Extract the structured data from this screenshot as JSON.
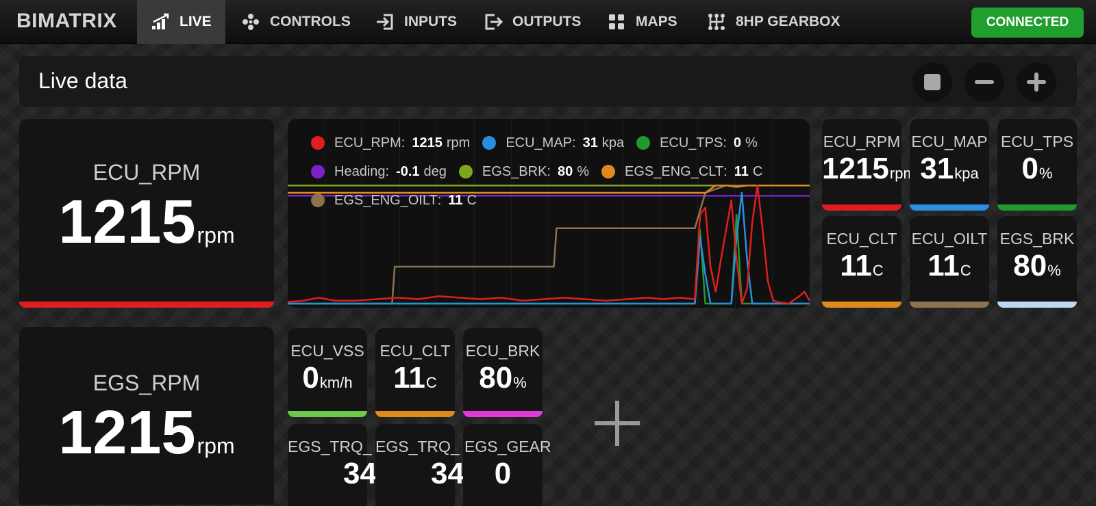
{
  "nav": {
    "brand": "BIMATRIX",
    "items": [
      {
        "label": "LIVE",
        "icon": "signal-bars-icon",
        "active": true
      },
      {
        "label": "CONTROLS",
        "icon": "gamepad-icon",
        "active": false
      },
      {
        "label": "INPUTS",
        "icon": "input-arrow-icon",
        "active": false
      },
      {
        "label": "OUTPUTS",
        "icon": "output-arrow-icon",
        "active": false
      },
      {
        "label": "MAPS",
        "icon": "grid-icon",
        "active": false
      },
      {
        "label": "8HP GEARBOX",
        "icon": "gear-shift-icon",
        "active": false
      }
    ],
    "status": "CONNECTED",
    "status_color": "#1f9f2e"
  },
  "toolbar": {
    "title": "Live data",
    "buttons": [
      {
        "icon": "stop-icon"
      },
      {
        "icon": "minus-icon"
      },
      {
        "icon": "plus-icon"
      }
    ]
  },
  "big_tiles": [
    {
      "label": "ECU_RPM",
      "value": "1215",
      "unit": "rpm",
      "color": "#e01e1e"
    },
    {
      "label": "EGS_RPM",
      "value": "1215",
      "unit": "rpm",
      "color": "#e01e1e"
    }
  ],
  "right_tiles": [
    {
      "label": "ECU_RPM",
      "value": "1215",
      "unit": "rpm",
      "color": "#e01e1e"
    },
    {
      "label": "ECU_MAP",
      "value": "31",
      "unit": "kpa",
      "color": "#2b8fe0"
    },
    {
      "label": "ECU_TPS",
      "value": "0",
      "unit": "%",
      "color": "#1f9a2c"
    },
    {
      "label": "ECU_CLT",
      "value": "11",
      "unit": "C",
      "color": "#e08a1e"
    },
    {
      "label": "ECU_OILT",
      "value": "11",
      "unit": "C",
      "color": "#8c7350"
    },
    {
      "label": "EGS_BRK",
      "value": "80",
      "unit": "%",
      "color": "#bcd8f4"
    }
  ],
  "bottom_tiles": [
    {
      "label": "ECU_VSS",
      "value": "0",
      "unit": "km/h",
      "color": "#6cc94a"
    },
    {
      "label": "ECU_CLT",
      "value": "11",
      "unit": "C",
      "color": "#e08a1e"
    },
    {
      "label": "ECU_BRK",
      "value": "80",
      "unit": "%",
      "color": "#e23ad8"
    },
    {
      "label": "EGS_TRQ_",
      "value": "34",
      "unit": "",
      "color": "#555555"
    },
    {
      "label": "EGS_TRQ_",
      "value": "34",
      "unit": "",
      "color": "#555555"
    },
    {
      "label": "EGS_GEAR",
      "value": "0",
      "unit": "",
      "color": "#555555"
    }
  ],
  "add_icon": "plus-icon",
  "chart_data": {
    "type": "line",
    "legend_placement": "top-left",
    "grid": true,
    "series": [
      {
        "name": "ECU_RPM",
        "value": "1215",
        "unit": "rpm",
        "color": "#e01e1e"
      },
      {
        "name": "ECU_MAP",
        "value": "31",
        "unit": "kpa",
        "color": "#2b8fe0"
      },
      {
        "name": "ECU_TPS",
        "value": "0",
        "unit": "%",
        "color": "#1f9a2c"
      },
      {
        "name": "Heading",
        "value": "-0.1",
        "unit": "deg",
        "color": "#7a22c8"
      },
      {
        "name": "EGS_BRK",
        "value": "80",
        "unit": "%",
        "color": "#7da81e"
      },
      {
        "name": "EGS_ENG_CLT",
        "value": "11",
        "unit": "C",
        "color": "#e08a1e"
      },
      {
        "name": "EGS_ENG_OILT",
        "value": "11",
        "unit": "C",
        "color": "#8c7350"
      }
    ],
    "traces": {
      "x_range": [
        0,
        100
      ],
      "y_range": [
        0,
        100
      ],
      "EGS_BRK": [
        [
          0,
          80
        ],
        [
          100,
          80
        ]
      ],
      "Heading": [
        [
          0,
          73
        ],
        [
          100,
          73
        ]
      ],
      "EGS_ENG_OILT": [
        [
          0,
          0
        ],
        [
          20,
          0
        ],
        [
          20.5,
          25
        ],
        [
          51,
          25
        ],
        [
          51.5,
          51
        ],
        [
          78,
          51
        ],
        [
          80,
          75
        ],
        [
          84,
          80
        ],
        [
          100,
          80
        ]
      ],
      "EGS_ENG_CLT": [
        [
          0,
          75
        ],
        [
          80,
          75
        ],
        [
          82,
          80
        ],
        [
          84,
          80
        ],
        [
          86,
          79
        ],
        [
          88,
          80
        ],
        [
          100,
          80
        ]
      ],
      "ECU_RPM": [
        [
          0,
          1
        ],
        [
          3,
          2
        ],
        [
          6,
          4
        ],
        [
          9,
          2
        ],
        [
          13,
          2
        ],
        [
          17,
          3
        ],
        [
          21,
          4
        ],
        [
          25,
          3
        ],
        [
          29,
          5
        ],
        [
          33,
          4
        ],
        [
          37,
          3
        ],
        [
          41,
          4
        ],
        [
          45,
          2
        ],
        [
          49,
          3
        ],
        [
          53,
          4
        ],
        [
          57,
          3
        ],
        [
          61,
          2
        ],
        [
          65,
          3
        ],
        [
          69,
          4
        ],
        [
          72,
          3
        ],
        [
          75,
          4
        ],
        [
          78,
          3
        ],
        [
          79,
          60
        ],
        [
          80,
          65
        ],
        [
          81,
          25
        ],
        [
          82,
          8
        ],
        [
          83,
          30
        ],
        [
          85,
          70
        ],
        [
          86,
          30
        ],
        [
          87,
          0
        ],
        [
          88,
          10
        ],
        [
          89,
          55
        ],
        [
          90,
          80
        ],
        [
          91,
          50
        ],
        [
          92,
          15
        ],
        [
          93,
          2
        ],
        [
          94,
          1
        ],
        [
          96,
          0
        ],
        [
          98,
          5
        ],
        [
          99,
          8
        ],
        [
          100,
          2
        ]
      ],
      "ECU_MAP": [
        [
          0,
          0
        ],
        [
          78,
          0
        ],
        [
          79,
          45
        ],
        [
          80,
          20
        ],
        [
          81,
          0
        ],
        [
          85,
          0
        ],
        [
          86,
          45
        ],
        [
          87,
          75
        ],
        [
          88,
          30
        ],
        [
          89,
          0
        ],
        [
          100,
          0
        ]
      ],
      "ECU_TPS": [
        [
          0,
          0
        ],
        [
          78,
          0
        ],
        [
          79,
          50
        ],
        [
          80,
          0
        ],
        [
          85,
          0
        ],
        [
          86,
          60
        ],
        [
          87,
          0
        ],
        [
          100,
          0
        ]
      ]
    }
  }
}
